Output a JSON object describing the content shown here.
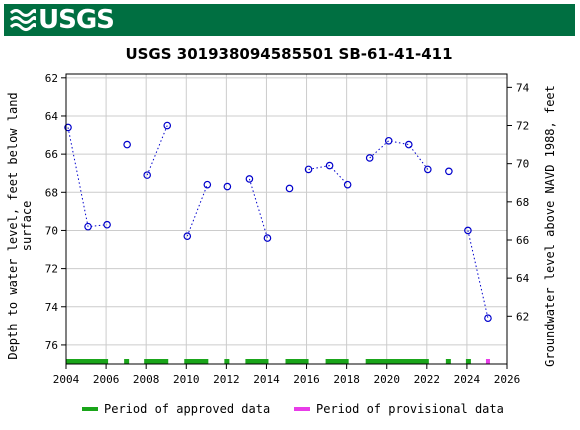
{
  "header": {
    "logo_text": "USGS"
  },
  "chart_data": {
    "type": "scatter",
    "title": "USGS 301938094585501 SB-61-41-411",
    "ylabel_left": "Depth to water level, feet below land surface",
    "ylabel_left_lines": [
      "Depth to water level, feet below land",
      "surface"
    ],
    "ylabel_right": "Groundwater level above NAVD 1988, feet",
    "xlim": [
      2004,
      2026
    ],
    "ylim_left": [
      77.0,
      61.8
    ],
    "x_ticks": [
      2004,
      2006,
      2008,
      2010,
      2012,
      2014,
      2016,
      2018,
      2020,
      2022,
      2024,
      2026
    ],
    "y_ticks_left": [
      62,
      64,
      66,
      68,
      70,
      72,
      74,
      76
    ],
    "y_ticks_right": [
      62,
      64,
      66,
      68,
      70,
      72,
      74
    ],
    "right_axis_offset": 136.5,
    "points": [
      {
        "x": 2004.1,
        "y": 64.6
      },
      {
        "x": 2005.1,
        "y": 69.8
      },
      {
        "x": 2006.05,
        "y": 69.7
      },
      {
        "x": 2007.05,
        "y": 65.5
      },
      {
        "x": 2008.05,
        "y": 67.1
      },
      {
        "x": 2009.05,
        "y": 64.5
      },
      {
        "x": 2010.05,
        "y": 70.3
      },
      {
        "x": 2011.05,
        "y": 67.6
      },
      {
        "x": 2012.05,
        "y": 67.7
      },
      {
        "x": 2013.15,
        "y": 67.3
      },
      {
        "x": 2014.05,
        "y": 70.4
      },
      {
        "x": 2015.15,
        "y": 67.8
      },
      {
        "x": 2016.1,
        "y": 66.8
      },
      {
        "x": 2017.15,
        "y": 66.6
      },
      {
        "x": 2018.05,
        "y": 67.6
      },
      {
        "x": 2019.15,
        "y": 66.2
      },
      {
        "x": 2020.1,
        "y": 65.3
      },
      {
        "x": 2021.1,
        "y": 65.5
      },
      {
        "x": 2022.05,
        "y": 66.8
      },
      {
        "x": 2023.1,
        "y": 66.9
      },
      {
        "x": 2024.05,
        "y": 70.0
      },
      {
        "x": 2025.05,
        "y": 74.6
      }
    ],
    "segments": [
      [
        0,
        3
      ],
      [
        3,
        4
      ],
      [
        4,
        6
      ],
      [
        6,
        8
      ],
      [
        8,
        9
      ],
      [
        9,
        11
      ],
      [
        11,
        12
      ],
      [
        12,
        15
      ],
      [
        15,
        19
      ],
      [
        19,
        20
      ],
      [
        20,
        22
      ]
    ],
    "approved_periods": [
      [
        2004.0,
        2006.1
      ],
      [
        2006.9,
        2007.15
      ],
      [
        2007.9,
        2009.1
      ],
      [
        2009.9,
        2011.1
      ],
      [
        2011.9,
        2012.15
      ],
      [
        2012.95,
        2014.1
      ],
      [
        2014.95,
        2016.1
      ],
      [
        2016.95,
        2018.1
      ],
      [
        2018.95,
        2022.1
      ],
      [
        2022.95,
        2023.2
      ],
      [
        2023.95,
        2024.2
      ]
    ],
    "provisional_periods": [
      [
        2024.95,
        2025.15
      ]
    ],
    "legend": {
      "approved": "Period of approved data",
      "provisional": "Period of provisional data"
    },
    "colors": {
      "point": "#0000cc",
      "line": "#0000cc",
      "approved": "#1aa51a",
      "provisional": "#e83ce8",
      "grid": "#cccccc",
      "banner": "#006f41"
    },
    "legend_position": "bottom",
    "grid": true
  }
}
